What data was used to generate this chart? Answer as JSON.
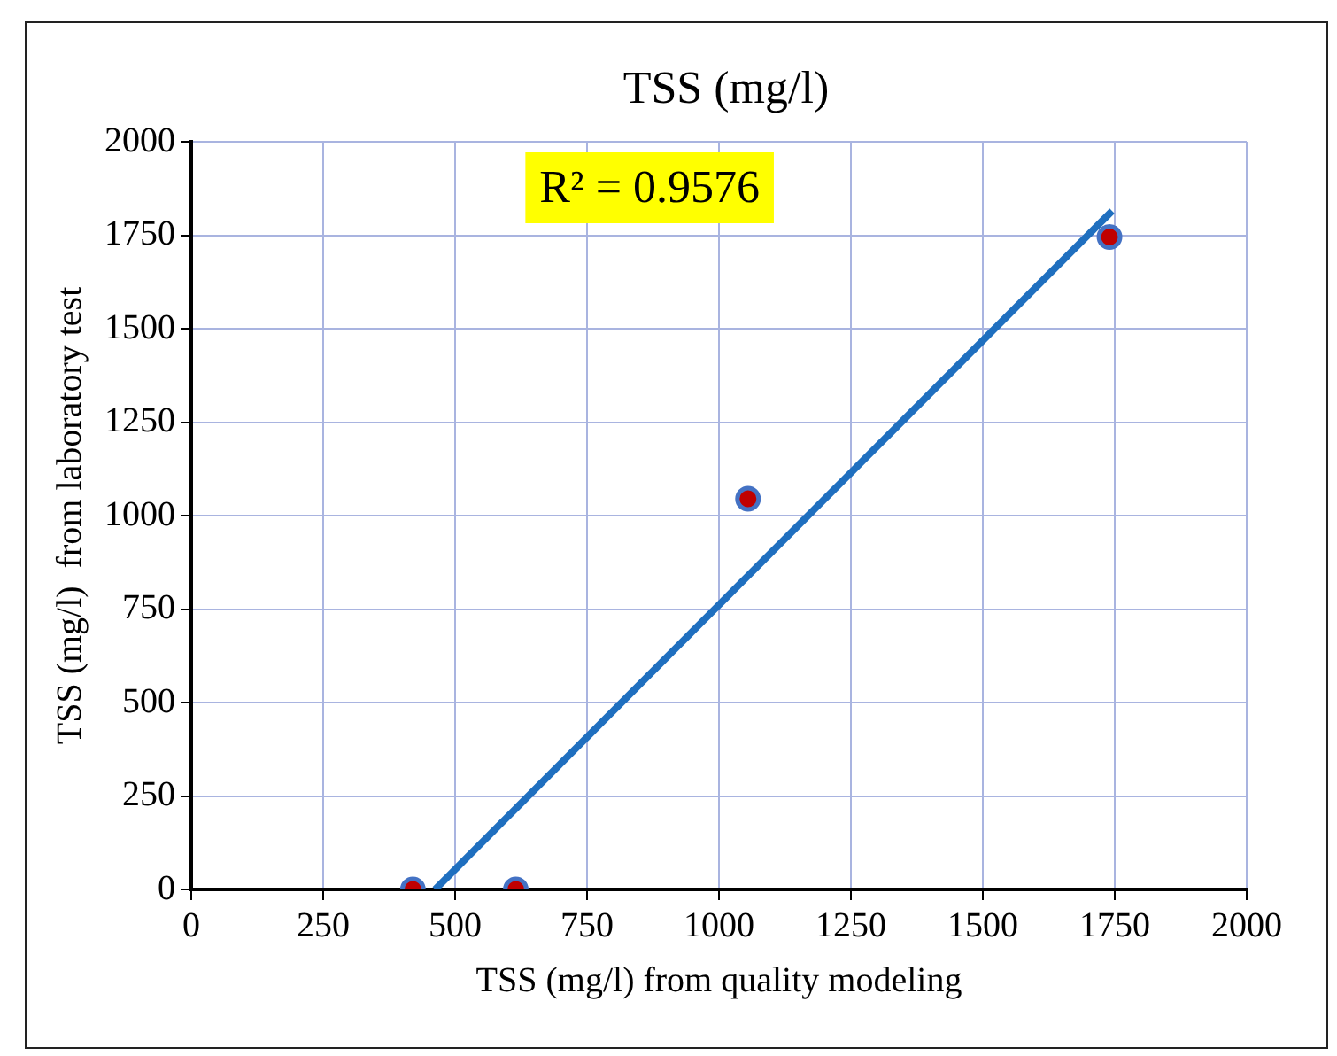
{
  "chart_data": {
    "type": "scatter",
    "title": "TSS (mg/l)",
    "xlabel": "TSS (mg/l) from quality modeling",
    "ylabel": "TSS (mg/l)  from laboratory test",
    "x": [
      420,
      615,
      1055,
      1740
    ],
    "series": [
      {
        "color": "#c00000",
        "values": [
          0,
          0,
          1045,
          1745
        ]
      },
      {
        "type": "line",
        "marker": "none",
        "color": "#1f6fbf",
        "x": [
          462,
          1745
        ],
        "values": [
          0,
          1815
        ]
      }
    ],
    "xlim": [
      0,
      2000
    ],
    "xticks": [
      0,
      250,
      500,
      750,
      1000,
      1250,
      1500,
      1750,
      2000
    ],
    "ylim": [
      0,
      2000
    ],
    "yticks": [
      0,
      250,
      500,
      750,
      1000,
      1250,
      1500,
      1750,
      2000
    ],
    "grid": true,
    "legend": false,
    "marker": "circle",
    "annotations": [
      "R² = 0.9576"
    ]
  }
}
